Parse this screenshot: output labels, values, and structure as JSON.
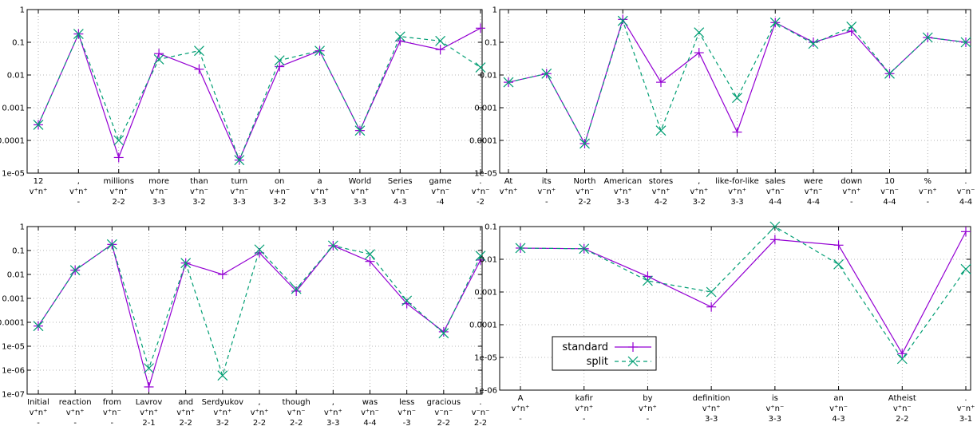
{
  "chart_data": [
    {
      "type": "line",
      "yscale": "log",
      "ylim": [
        1e-05,
        1
      ],
      "yticks": [
        "1e-05",
        "0.0001",
        "0.001",
        "0.01",
        "0.1",
        "1"
      ],
      "grid": true,
      "categories": [
        "12",
        ",",
        "millions",
        "more",
        "than",
        "turn",
        "on",
        "a",
        "World",
        "Series",
        "game",
        "."
      ],
      "row2": [
        "v⁺n⁺",
        "v⁺n⁺",
        "v⁺n⁺",
        "v⁺n⁻",
        "v⁺n⁻",
        "v⁺n⁻",
        "v+n⁻",
        "v⁺n⁺",
        "v⁺n⁺",
        "v⁺n⁻",
        "v⁺n⁻",
        "v⁺n⁻"
      ],
      "row3": [
        "",
        "-",
        "2-2",
        "3-3",
        "3-2",
        "3-3",
        "3-2",
        "3-3",
        "3-3",
        "4-3",
        "-4",
        "-2"
      ],
      "series": [
        {
          "name": "standard",
          "values": [
            0.0003,
            0.18,
            3e-05,
            0.045,
            0.015,
            2.5e-05,
            0.018,
            0.055,
            0.0002,
            0.11,
            0.06,
            0.27
          ]
        },
        {
          "name": "split",
          "values": [
            0.0003,
            0.18,
            0.0001,
            0.03,
            0.055,
            2.5e-05,
            0.028,
            0.055,
            0.0002,
            0.15,
            0.11,
            0.017
          ]
        }
      ]
    },
    {
      "type": "line",
      "yscale": "log",
      "ylim": [
        1e-05,
        1
      ],
      "yticks": [
        "1e-05",
        "0.0001",
        "0.001",
        "0.01",
        "0.1",
        "1"
      ],
      "grid": true,
      "categories": [
        "At",
        "its",
        "North",
        "American",
        "stores",
        ",",
        "like-for-like",
        "sales",
        "were",
        "down",
        "10",
        "%",
        "."
      ],
      "row2": [
        "v⁺n⁺",
        "v⁻n⁺",
        "v⁺n⁻",
        "v⁺n⁺",
        "v⁺n⁺",
        "v⁺n⁺",
        "v⁺n⁺",
        "v⁺n⁻",
        "v⁺n⁻",
        "v⁺n⁺",
        "v⁻n⁻",
        "v⁻n⁺",
        "v⁻n⁻"
      ],
      "row3": [
        "",
        "-",
        "2-2",
        "3-3",
        "4-2",
        "3-2",
        "3-3",
        "4-4",
        "4-4",
        "-",
        "4-4",
        "-",
        "4-4"
      ],
      "series": [
        {
          "name": "standard",
          "values": [
            0.006,
            0.011,
            8e-05,
            0.5,
            0.006,
            0.048,
            0.00018,
            0.4,
            0.1,
            0.22,
            0.011,
            0.14,
            0.1
          ]
        },
        {
          "name": "split",
          "values": [
            0.006,
            0.011,
            8e-05,
            0.45,
            0.0002,
            0.2,
            0.002,
            0.4,
            0.09,
            0.3,
            0.011,
            0.14,
            0.1
          ]
        }
      ]
    },
    {
      "type": "line",
      "yscale": "log",
      "ylim": [
        1e-07,
        1
      ],
      "yticks": [
        "1e-07",
        "1e-06",
        "1e-05",
        "0.0001",
        "0.001",
        "0.01",
        "0.1",
        "1"
      ],
      "grid": true,
      "categories": [
        "Initial",
        "reaction",
        "from",
        "Lavrov",
        "and",
        "Serdyukov",
        ",",
        "though",
        ",",
        "was",
        "less",
        "gracious",
        "."
      ],
      "row2": [
        "v⁺n⁺",
        "v⁺n⁺",
        "v⁺n⁻",
        "v⁺n⁺",
        "v⁺n⁺",
        "v⁺n⁺",
        "v⁺n⁺",
        "v⁺n⁻",
        "v⁺n⁺",
        "v⁺n⁻",
        "v⁺n⁻",
        "v⁻n⁻",
        "v⁻n⁻"
      ],
      "row3": [
        "-",
        "-",
        "-",
        "2-1",
        "2-2",
        "3-2",
        "2-2",
        "2-2",
        "3-3",
        "4-4",
        "-3",
        "2-2",
        "2-2"
      ],
      "series": [
        {
          "name": "standard",
          "values": [
            7e-05,
            0.015,
            0.18,
            2e-07,
            0.03,
            0.01,
            0.08,
            0.002,
            0.16,
            0.035,
            0.0006,
            4e-05,
            0.04
          ]
        },
        {
          "name": "split",
          "values": [
            7e-05,
            0.015,
            0.18,
            1.2e-06,
            0.03,
            6e-07,
            0.11,
            0.0025,
            0.16,
            0.07,
            0.0008,
            3.5e-05,
            0.06
          ]
        }
      ]
    },
    {
      "type": "line",
      "yscale": "log",
      "ylim": [
        1e-06,
        0.1
      ],
      "yticks": [
        "1e-06",
        "1e-05",
        "0.0001",
        "0.001",
        "0.01",
        "0.1"
      ],
      "grid": true,
      "legend": "bottom-left",
      "categories": [
        "A",
        "kafir",
        "by",
        "definition",
        "is",
        "an",
        "Atheist",
        "."
      ],
      "row2": [
        "v⁺n⁺",
        "v⁺n⁺",
        "v⁺n⁺",
        "v⁺n⁺",
        "v⁺n⁻",
        "v⁺n⁻",
        "v⁺n⁻",
        "v⁻n⁺"
      ],
      "row3": [
        "-",
        "-",
        "-",
        "3-3",
        "3-3",
        "4-3",
        "2-2",
        "3-1"
      ],
      "series": [
        {
          "name": "standard",
          "values": [
            0.022,
            0.021,
            0.003,
            0.00035,
            0.04,
            0.027,
            1.3e-05,
            0.07
          ]
        },
        {
          "name": "split",
          "values": [
            0.022,
            0.021,
            0.0022,
            0.001,
            0.1,
            0.007,
            9e-06,
            0.005
          ]
        }
      ]
    }
  ],
  "legend": {
    "standard": "standard",
    "split": "split"
  },
  "colors": {
    "standard": "#9400d3",
    "split": "#009e73",
    "grid": "#a0a0a0"
  }
}
